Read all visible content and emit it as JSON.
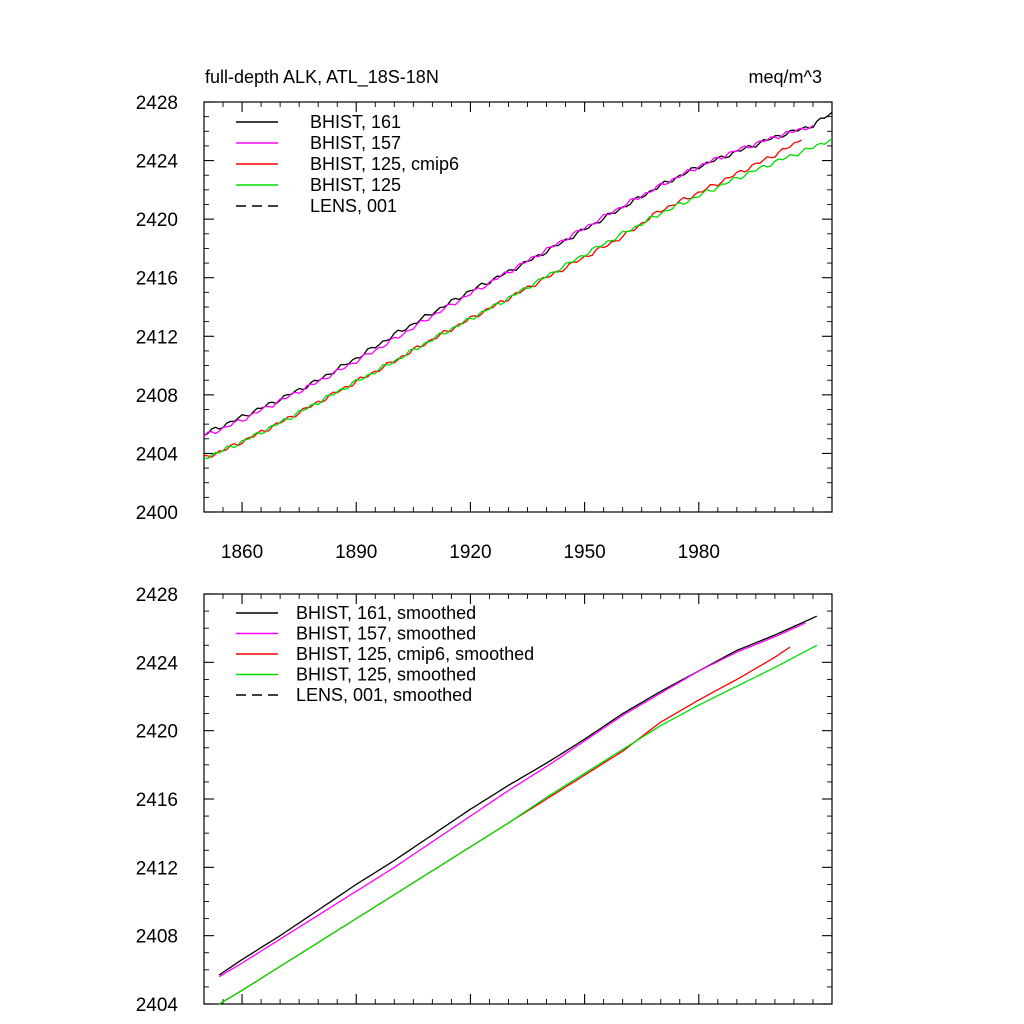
{
  "header": {
    "title": "full-depth ALK, ATL_18S-18N",
    "units": "meq/m^3"
  },
  "chart_data": [
    {
      "type": "line",
      "title": "full-depth ALK, ATL_18S-18N",
      "units_label": "meq/m^3",
      "xlim": [
        1850,
        2015
      ],
      "ylim": [
        2400,
        2428
      ],
      "xticks": [
        1860,
        1890,
        1920,
        1950,
        1980
      ],
      "x_tick_labels": [
        "1860",
        "1890",
        "1920",
        "1950",
        "1980"
      ],
      "yticks": [
        2400,
        2404,
        2408,
        2412,
        2416,
        2420,
        2424,
        2428
      ],
      "y_tick_labels": [
        "2400",
        "2404",
        "2408",
        "2412",
        "2416",
        "2420",
        "2424",
        "2428"
      ],
      "legend_position": "top-left",
      "series": [
        {
          "name": "BHIST, 161",
          "color": "#000000",
          "dash": "solid",
          "x": [
            1850,
            1855,
            1860,
            1870,
            1880,
            1890,
            1900,
            1910,
            1920,
            1930,
            1940,
            1950,
            1960,
            1970,
            1980,
            1990,
            2000,
            2010,
            2015
          ],
          "y": [
            2405.3,
            2405.9,
            2406.5,
            2407.7,
            2409.0,
            2410.5,
            2412.1,
            2413.6,
            2415.1,
            2416.4,
            2417.8,
            2419.3,
            2420.8,
            2422.3,
            2423.6,
            2424.6,
            2425.6,
            2426.4,
            2427.3
          ]
        },
        {
          "name": "BHIST, 157",
          "color": "#ff00ff",
          "dash": "solid",
          "x": [
            1850,
            1855,
            1860,
            1870,
            1880,
            1890,
            1900,
            1910,
            1920,
            1930,
            1940,
            1950,
            1960,
            1970,
            1980,
            1990,
            2000,
            2010
          ],
          "y": [
            2405.2,
            2405.7,
            2406.3,
            2407.6,
            2408.9,
            2410.3,
            2411.8,
            2413.4,
            2414.9,
            2416.4,
            2417.9,
            2419.4,
            2420.9,
            2422.3,
            2423.6,
            2424.7,
            2425.6,
            2426.4
          ]
        },
        {
          "name": "BHIST, 125, cmip6",
          "color": "#ff0000",
          "dash": "solid",
          "x": [
            1850,
            1855,
            1860,
            1870,
            1880,
            1890,
            1900,
            1910,
            1920,
            1930,
            1940,
            1950,
            1960,
            1970,
            1980,
            1990,
            2000,
            2007
          ],
          "y": [
            2403.7,
            2404.2,
            2404.8,
            2406.1,
            2407.5,
            2408.9,
            2410.3,
            2411.8,
            2413.2,
            2414.6,
            2416.0,
            2417.4,
            2418.8,
            2420.6,
            2421.8,
            2423.1,
            2424.4,
            2425.4
          ]
        },
        {
          "name": "BHIST, 125",
          "color": "#00dd00",
          "dash": "solid",
          "x": [
            1850,
            1855,
            1860,
            1870,
            1880,
            1890,
            1900,
            1910,
            1920,
            1930,
            1940,
            1950,
            1960,
            1970,
            1980,
            1990,
            2000,
            2010,
            2015
          ],
          "y": [
            2403.7,
            2404.2,
            2404.8,
            2406.1,
            2407.5,
            2408.9,
            2410.3,
            2411.8,
            2413.2,
            2414.6,
            2416.1,
            2417.6,
            2419.0,
            2420.4,
            2421.6,
            2422.8,
            2423.9,
            2424.9,
            2425.5
          ]
        },
        {
          "name": "LENS, 001",
          "color": "#000000",
          "dash": "dashed",
          "x": [],
          "y": []
        }
      ]
    },
    {
      "type": "line",
      "title": "",
      "xlim": [
        1850,
        2015
      ],
      "ylim": [
        2404,
        2428
      ],
      "xticks": [
        1860,
        1890,
        1920,
        1950,
        1980
      ],
      "yticks": [
        2404,
        2408,
        2412,
        2416,
        2420,
        2424,
        2428
      ],
      "y_tick_labels": [
        "2404",
        "2408",
        "2412",
        "2416",
        "2420",
        "2424",
        "2428"
      ],
      "legend_position": "top-left",
      "series": [
        {
          "name": "BHIST, 161, smoothed",
          "color": "#000000",
          "dash": "solid",
          "x": [
            1854,
            1860,
            1870,
            1880,
            1890,
            1900,
            1910,
            1920,
            1930,
            1940,
            1950,
            1960,
            1970,
            1980,
            1990,
            2000,
            2011
          ],
          "y": [
            2405.7,
            2406.6,
            2408.0,
            2409.5,
            2411.0,
            2412.4,
            2413.9,
            2415.4,
            2416.8,
            2418.1,
            2419.5,
            2421.0,
            2422.3,
            2423.5,
            2424.7,
            2425.6,
            2426.7
          ]
        },
        {
          "name": "BHIST, 157, smoothed",
          "color": "#ff00ff",
          "dash": "solid",
          "x": [
            1854,
            1860,
            1870,
            1880,
            1890,
            1900,
            1910,
            1920,
            1930,
            1940,
            1950,
            1960,
            1970,
            1980,
            1990,
            2000,
            2008
          ],
          "y": [
            2405.6,
            2406.4,
            2407.8,
            2409.2,
            2410.6,
            2412.0,
            2413.5,
            2415.0,
            2416.5,
            2417.9,
            2419.4,
            2420.9,
            2422.2,
            2423.5,
            2424.6,
            2425.5,
            2426.3
          ]
        },
        {
          "name": "BHIST, 125, cmip6, smoothed",
          "color": "#ff0000",
          "dash": "solid",
          "x": [
            1854,
            1860,
            1870,
            1880,
            1890,
            1900,
            1910,
            1920,
            1930,
            1940,
            1950,
            1960,
            1970,
            1980,
            1990,
            2000,
            2004
          ],
          "y": [
            2404.0,
            2404.8,
            2406.2,
            2407.6,
            2409.0,
            2410.4,
            2411.8,
            2413.2,
            2414.6,
            2416.0,
            2417.4,
            2418.8,
            2420.5,
            2421.8,
            2423.0,
            2424.3,
            2424.9
          ]
        },
        {
          "name": "BHIST, 125, smoothed",
          "color": "#00dd00",
          "dash": "solid",
          "x": [
            1854,
            1860,
            1870,
            1880,
            1890,
            1900,
            1910,
            1920,
            1930,
            1940,
            1950,
            1960,
            1970,
            1980,
            1990,
            2000,
            2011
          ],
          "y": [
            2404.0,
            2404.8,
            2406.2,
            2407.6,
            2409.0,
            2410.4,
            2411.8,
            2413.2,
            2414.6,
            2416.1,
            2417.5,
            2418.9,
            2420.3,
            2421.5,
            2422.6,
            2423.7,
            2425.0
          ]
        },
        {
          "name": "LENS, 001, smoothed",
          "color": "#000000",
          "dash": "dashed",
          "x": [],
          "y": []
        }
      ]
    }
  ]
}
